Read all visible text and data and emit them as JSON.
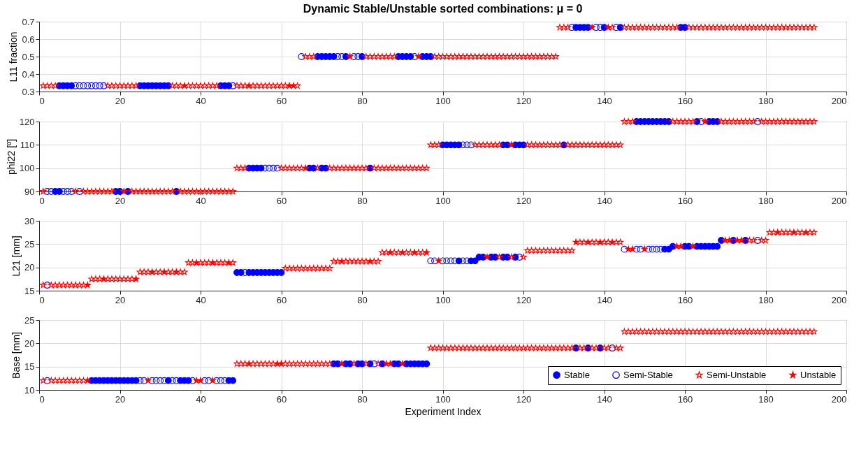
{
  "chart_data": [
    {
      "type": "scatter",
      "title": "Dynamic Stable/Unstable sorted combinations: μ = 0",
      "ylabel": "L11 fraction",
      "xlim": [
        0,
        200
      ],
      "xticks": [
        0,
        20,
        40,
        60,
        80,
        100,
        120,
        140,
        160,
        180,
        200
      ],
      "ylim": [
        0.3,
        0.7
      ],
      "yticks": [
        0.3,
        0.4,
        0.5,
        0.6,
        0.7
      ],
      "grid": true,
      "series": [
        {
          "color": "#0000ff",
          "marker": "circle",
          "x": [
            5,
            6,
            7,
            8,
            25,
            26,
            27,
            28,
            29,
            30,
            31,
            32,
            45,
            46,
            47,
            69,
            70,
            71,
            72,
            73,
            76,
            80,
            89,
            90,
            91,
            92,
            95,
            96,
            97,
            133,
            134,
            135,
            136,
            140,
            144,
            159,
            160
          ],
          "values": [
            0.333,
            0.333,
            0.333,
            0.333,
            0.333,
            0.333,
            0.333,
            0.333,
            0.333,
            0.333,
            0.333,
            0.333,
            0.333,
            0.333,
            0.333,
            0.5,
            0.5,
            0.5,
            0.5,
            0.5,
            0.5,
            0.5,
            0.5,
            0.5,
            0.5,
            0.5,
            0.5,
            0.5,
            0.5,
            0.667,
            0.667,
            0.667,
            0.667,
            0.667,
            0.667,
            0.667,
            0.667
          ]
        },
        {
          "color": "#0000ff",
          "marker": "circle",
          "x": [
            9,
            10,
            11,
            12,
            13,
            14,
            15,
            16,
            48,
            65,
            74,
            75,
            78,
            79,
            93,
            132,
            138,
            139,
            143
          ],
          "values": [
            0.333,
            0.333,
            0.333,
            0.333,
            0.333,
            0.333,
            0.333,
            0.333,
            0.333,
            0.5,
            0.5,
            0.5,
            0.5,
            0.5,
            0.5,
            0.667,
            0.667,
            0.667,
            0.667
          ]
        },
        {
          "color": "#ff0000",
          "marker": "star",
          "x": [
            1,
            2,
            3,
            4,
            17,
            18,
            19,
            20,
            21,
            22,
            23,
            24,
            33,
            34,
            35,
            37,
            38,
            39,
            40,
            41,
            42,
            43,
            44,
            49,
            50,
            51,
            53,
            54,
            55,
            56,
            57,
            58,
            59,
            60,
            61,
            64,
            66,
            67,
            68,
            81,
            82,
            83,
            84,
            85,
            86,
            87,
            88,
            98,
            99,
            100,
            101,
            102,
            103,
            104,
            105,
            106,
            107,
            108,
            109,
            110,
            111,
            112,
            113,
            114,
            115,
            116,
            117,
            118,
            119,
            120,
            121,
            122,
            123,
            124,
            125,
            126,
            127,
            128,
            129,
            130,
            131,
            142,
            145,
            146,
            147,
            148,
            149,
            150,
            151,
            152,
            153,
            154,
            155,
            156,
            157,
            158,
            161,
            162,
            163,
            164,
            165,
            166,
            167,
            168,
            169,
            170,
            171,
            172,
            173,
            174,
            175,
            176,
            177,
            178,
            179,
            180,
            181,
            182,
            183,
            184,
            185,
            186,
            187,
            188,
            189,
            190,
            191,
            192
          ],
          "values": [
            0.333,
            0.333,
            0.333,
            0.333,
            0.333,
            0.333,
            0.333,
            0.333,
            0.333,
            0.333,
            0.333,
            0.333,
            0.333,
            0.333,
            0.333,
            0.333,
            0.333,
            0.333,
            0.333,
            0.333,
            0.333,
            0.333,
            0.333,
            0.333,
            0.333,
            0.333,
            0.333,
            0.333,
            0.333,
            0.333,
            0.333,
            0.333,
            0.333,
            0.333,
            0.333,
            0.333,
            0.5,
            0.5,
            0.5,
            0.5,
            0.5,
            0.5,
            0.5,
            0.5,
            0.5,
            0.5,
            0.5,
            0.5,
            0.5,
            0.5,
            0.5,
            0.5,
            0.5,
            0.5,
            0.5,
            0.5,
            0.5,
            0.5,
            0.5,
            0.5,
            0.5,
            0.5,
            0.5,
            0.5,
            0.5,
            0.5,
            0.5,
            0.5,
            0.5,
            0.5,
            0.5,
            0.5,
            0.5,
            0.5,
            0.5,
            0.5,
            0.5,
            0.5,
            0.667,
            0.667,
            0.667,
            0.667,
            0.667,
            0.667,
            0.667,
            0.667,
            0.667,
            0.667,
            0.667,
            0.667,
            0.667,
            0.667,
            0.667,
            0.667,
            0.667,
            0.667,
            0.667,
            0.667,
            0.667,
            0.667,
            0.667,
            0.667,
            0.667,
            0.667,
            0.667,
            0.667,
            0.667,
            0.667,
            0.667,
            0.667,
            0.667,
            0.667,
            0.667,
            0.667,
            0.667,
            0.667,
            0.667,
            0.667,
            0.667,
            0.667,
            0.667,
            0.667,
            0.667,
            0.667,
            0.667,
            0.667,
            0.667,
            0.667
          ]
        },
        {
          "color": "#ff0000",
          "marker": "star",
          "x": [
            36,
            52,
            62,
            63,
            77,
            94,
            137,
            141
          ],
          "values": [
            0.333,
            0.333,
            0.333,
            0.333,
            0.5,
            0.5,
            0.667,
            0.667
          ]
        }
      ]
    },
    {
      "type": "scatter",
      "ylabel": "phi22 [º]",
      "xlim": [
        0,
        200
      ],
      "xticks": [
        0,
        20,
        40,
        60,
        80,
        100,
        120,
        140,
        160,
        180,
        200
      ],
      "ylim": [
        90,
        120
      ],
      "yticks": [
        90,
        100,
        110,
        120
      ],
      "grid": true,
      "series": [
        {
          "color": "#0000ff",
          "marker": "circle",
          "x": [
            4,
            5,
            19,
            20,
            22,
            34,
            52,
            53,
            54,
            55,
            67,
            68,
            70,
            71,
            82,
            100,
            101,
            102,
            103,
            104,
            115,
            116,
            118,
            119,
            120,
            130,
            148,
            149,
            150,
            151,
            152,
            153,
            154,
            155,
            156,
            163,
            166,
            167,
            168
          ],
          "values": [
            90,
            90,
            90,
            90,
            90,
            90,
            100,
            100,
            100,
            100,
            100,
            100,
            100,
            100,
            100,
            110,
            110,
            110,
            110,
            110,
            110,
            110,
            110,
            110,
            110,
            110,
            120,
            120,
            120,
            120,
            120,
            120,
            120,
            120,
            120,
            120,
            120,
            120,
            120
          ]
        },
        {
          "color": "#0000ff",
          "marker": "circle",
          "x": [
            2,
            3,
            6,
            7,
            8,
            10,
            56,
            57,
            58,
            59,
            105,
            106,
            107,
            164,
            178
          ],
          "values": [
            90,
            90,
            90,
            90,
            90,
            90,
            100,
            100,
            100,
            100,
            110,
            110,
            110,
            120,
            120
          ]
        },
        {
          "color": "#ff0000",
          "marker": "star",
          "x": [
            1,
            9,
            11,
            12,
            13,
            14,
            15,
            16,
            17,
            18,
            23,
            24,
            25,
            26,
            27,
            28,
            29,
            30,
            31,
            32,
            33,
            35,
            36,
            37,
            38,
            39,
            40,
            41,
            42,
            43,
            44,
            45,
            46,
            47,
            48,
            49,
            50,
            51,
            60,
            61,
            62,
            63,
            64,
            65,
            69,
            72,
            73,
            74,
            75,
            76,
            77,
            78,
            79,
            80,
            81,
            83,
            84,
            85,
            86,
            87,
            88,
            89,
            90,
            91,
            92,
            93,
            94,
            95,
            96,
            97,
            98,
            99,
            108,
            109,
            110,
            111,
            112,
            113,
            114,
            121,
            122,
            123,
            124,
            125,
            126,
            127,
            128,
            129,
            131,
            132,
            133,
            134,
            135,
            136,
            137,
            138,
            139,
            140,
            141,
            142,
            143,
            144,
            145,
            146,
            147,
            157,
            158,
            159,
            160,
            161,
            162,
            169,
            170,
            171,
            172,
            173,
            174,
            175,
            176,
            177,
            179,
            180,
            181,
            182,
            183,
            184,
            185,
            186,
            187,
            188,
            189,
            190,
            191,
            192
          ],
          "values": [
            90,
            90,
            90,
            90,
            90,
            90,
            90,
            90,
            90,
            90,
            90,
            90,
            90,
            90,
            90,
            90,
            90,
            90,
            90,
            90,
            90,
            90,
            90,
            90,
            90,
            90,
            90,
            90,
            90,
            90,
            90,
            90,
            90,
            90,
            90,
            100,
            100,
            100,
            100,
            100,
            100,
            100,
            100,
            100,
            100,
            100,
            100,
            100,
            100,
            100,
            100,
            100,
            100,
            100,
            100,
            100,
            100,
            100,
            100,
            100,
            100,
            100,
            100,
            100,
            100,
            100,
            100,
            100,
            100,
            110,
            110,
            110,
            110,
            110,
            110,
            110,
            110,
            110,
            110,
            110,
            110,
            110,
            110,
            110,
            110,
            110,
            110,
            110,
            110,
            110,
            110,
            110,
            110,
            110,
            110,
            110,
            110,
            110,
            110,
            110,
            110,
            110,
            120,
            120,
            120,
            120,
            120,
            120,
            120,
            120,
            120,
            120,
            120,
            120,
            120,
            120,
            120,
            120,
            120,
            120,
            120,
            120,
            120,
            120,
            120,
            120,
            120,
            120,
            120,
            120,
            120,
            120,
            120,
            120
          ]
        },
        {
          "color": "#ff0000",
          "marker": "star",
          "x": [
            21,
            66,
            117,
            165
          ],
          "values": [
            90,
            100,
            110,
            120
          ]
        }
      ]
    },
    {
      "type": "scatter",
      "ylabel": "L21 [mm]",
      "xlim": [
        0,
        200
      ],
      "xticks": [
        0,
        20,
        40,
        60,
        80,
        100,
        120,
        140,
        160,
        180,
        200
      ],
      "ylim": [
        15,
        30
      ],
      "yticks": [
        15,
        20,
        25,
        30
      ],
      "grid": true,
      "series": [
        {
          "color": "#0000ff",
          "marker": "circle",
          "x": [
            49,
            50,
            52,
            53,
            54,
            55,
            56,
            57,
            58,
            59,
            60,
            104,
            107,
            108,
            109,
            110,
            112,
            113,
            115,
            116,
            118,
            155,
            156,
            157,
            160,
            161,
            163,
            164,
            165,
            166,
            167,
            168,
            169,
            172,
            175
          ],
          "values": [
            18.9,
            18.9,
            18.9,
            18.9,
            18.9,
            18.9,
            18.9,
            18.9,
            18.9,
            18.9,
            18.9,
            21.4,
            21.4,
            21.4,
            22.2,
            22.2,
            22.2,
            22.2,
            22.2,
            22.2,
            22.2,
            23.9,
            23.9,
            24.5,
            24.5,
            24.5,
            24.5,
            24.5,
            24.5,
            24.5,
            24.5,
            24.5,
            25.8,
            25.8,
            25.8
          ]
        },
        {
          "color": "#0000ff",
          "marker": "circle",
          "x": [
            2,
            51,
            97,
            98,
            100,
            101,
            102,
            103,
            105,
            106,
            119,
            145,
            148,
            149,
            151,
            152,
            153,
            154,
            178
          ],
          "values": [
            16.2,
            18.9,
            21.4,
            21.4,
            21.4,
            21.4,
            21.4,
            21.4,
            21.4,
            21.4,
            22.2,
            23.9,
            23.9,
            23.9,
            23.9,
            23.9,
            23.9,
            23.9,
            25.8
          ]
        },
        {
          "color": "#ff0000",
          "marker": "star",
          "x": [
            1,
            3,
            4,
            5,
            6,
            7,
            8,
            9,
            10,
            11,
            13,
            14,
            15,
            17,
            18,
            19,
            20,
            21,
            22,
            23,
            25,
            26,
            27,
            29,
            30,
            32,
            33,
            35,
            36,
            37,
            38,
            40,
            41,
            42,
            44,
            45,
            46,
            48,
            61,
            62,
            63,
            64,
            65,
            66,
            67,
            68,
            69,
            70,
            71,
            72,
            73,
            74,
            76,
            77,
            78,
            79,
            80,
            81,
            83,
            84,
            85,
            86,
            88,
            89,
            91,
            92,
            94,
            95,
            114,
            117,
            120,
            121,
            122,
            123,
            124,
            125,
            126,
            127,
            128,
            129,
            130,
            131,
            132,
            134,
            135,
            137,
            138,
            140,
            141,
            143,
            144,
            176,
            177,
            179,
            180,
            181,
            182,
            184,
            185,
            186,
            188,
            189,
            191,
            192
          ],
          "values": [
            16.2,
            16.2,
            16.2,
            16.2,
            16.2,
            16.2,
            16.2,
            16.2,
            16.2,
            16.2,
            17.5,
            17.5,
            17.5,
            17.5,
            17.5,
            17.5,
            17.5,
            17.5,
            17.5,
            17.5,
            19.0,
            19.0,
            19.0,
            19.0,
            19.0,
            19.0,
            19.0,
            19.0,
            19.0,
            21.0,
            21.0,
            21.0,
            21.0,
            21.0,
            21.0,
            21.0,
            21.0,
            21.0,
            19.8,
            19.8,
            19.8,
            19.8,
            19.8,
            19.8,
            19.8,
            19.8,
            19.8,
            19.8,
            19.8,
            19.8,
            21.3,
            21.3,
            21.3,
            21.3,
            21.3,
            21.3,
            21.3,
            21.3,
            21.3,
            21.3,
            23.2,
            23.2,
            23.2,
            23.2,
            23.2,
            23.2,
            23.2,
            23.2,
            22.2,
            22.2,
            22.2,
            23.6,
            23.6,
            23.6,
            23.6,
            23.6,
            23.6,
            23.6,
            23.6,
            23.6,
            23.6,
            23.6,
            23.6,
            25.4,
            25.4,
            25.4,
            25.4,
            25.4,
            25.4,
            25.4,
            25.4,
            25.8,
            25.8,
            25.8,
            25.8,
            27.5,
            27.5,
            27.5,
            27.5,
            27.5,
            27.5,
            27.5,
            27.5,
            27.5
          ]
        },
        {
          "color": "#ff0000",
          "marker": "star",
          "x": [
            12,
            16,
            24,
            28,
            31,
            34,
            39,
            43,
            47,
            75,
            82,
            87,
            90,
            93,
            96,
            99,
            111,
            133,
            136,
            139,
            142,
            146,
            147,
            150,
            158,
            159,
            162,
            170,
            171,
            173,
            174,
            183,
            187,
            190
          ],
          "values": [
            16.2,
            17.5,
            17.5,
            19.0,
            19.0,
            19.0,
            21.0,
            21.0,
            21.0,
            21.3,
            21.3,
            23.2,
            23.2,
            23.2,
            23.2,
            21.4,
            22.2,
            25.4,
            25.4,
            25.4,
            25.4,
            23.9,
            23.9,
            23.9,
            24.5,
            24.5,
            24.5,
            25.8,
            25.8,
            25.8,
            25.8,
            27.5,
            27.5,
            27.5
          ]
        }
      ]
    },
    {
      "type": "scatter",
      "ylabel": "Base [mm]",
      "xlabel": "Experiment Index",
      "xlim": [
        0,
        200
      ],
      "xticks": [
        0,
        20,
        40,
        60,
        80,
        100,
        120,
        140,
        160,
        180,
        200
      ],
      "ylim": [
        10,
        25
      ],
      "yticks": [
        10,
        15,
        20,
        25
      ],
      "grid": true,
      "legend": "bottom right",
      "series": [
        {
          "name": "Stable",
          "color": "#0000ff",
          "marker": "circle",
          "x": [
            13,
            14,
            15,
            16,
            17,
            18,
            19,
            20,
            21,
            22,
            23,
            24,
            32,
            35,
            36,
            37,
            47,
            48,
            73,
            74,
            76,
            77,
            79,
            80,
            82,
            85,
            88,
            89,
            91,
            92,
            93,
            94,
            95,
            96,
            133,
            136,
            139
          ],
          "values": [
            12.0,
            12.0,
            12.0,
            12.0,
            12.0,
            12.0,
            12.0,
            12.0,
            12.0,
            12.0,
            12.0,
            12.0,
            12.0,
            12.0,
            12.0,
            12.0,
            12.0,
            12.0,
            15.6,
            15.6,
            15.6,
            15.6,
            15.6,
            15.6,
            15.6,
            15.6,
            15.6,
            15.6,
            15.6,
            15.6,
            15.6,
            15.6,
            15.6,
            15.6,
            19.0,
            19.0,
            19.0
          ]
        },
        {
          "name": "Semi-Stable",
          "color": "#0000ff",
          "marker": "circle",
          "x": [
            2,
            25,
            26,
            28,
            29,
            30,
            31,
            33,
            34,
            38,
            41,
            42,
            44,
            45,
            46,
            83,
            142
          ],
          "values": [
            12.0,
            12.0,
            12.0,
            12.0,
            12.0,
            12.0,
            12.0,
            12.0,
            12.0,
            12.0,
            12.0,
            12.0,
            12.0,
            12.0,
            12.0,
            15.6,
            19.0
          ]
        },
        {
          "name": "Semi-Unstable",
          "color": "#ff0000",
          "marker": "star",
          "x": [
            1,
            3,
            4,
            5,
            6,
            7,
            8,
            9,
            10,
            11,
            49,
            50,
            51,
            53,
            54,
            55,
            56,
            57,
            58,
            61,
            62,
            63,
            64,
            65,
            66,
            67,
            68,
            69,
            70,
            71,
            72,
            78,
            81,
            84,
            97,
            98,
            99,
            100,
            101,
            102,
            103,
            104,
            105,
            106,
            107,
            108,
            109,
            110,
            111,
            112,
            113,
            114,
            115,
            116,
            117,
            118,
            119,
            120,
            121,
            122,
            123,
            124,
            125,
            126,
            127,
            128,
            129,
            130,
            131,
            132,
            134,
            135,
            137,
            138,
            140,
            141,
            143,
            144,
            145,
            146,
            147,
            148,
            149,
            150,
            151,
            152,
            153,
            154,
            155,
            156,
            157,
            158,
            159,
            160,
            161,
            162,
            163,
            164,
            165,
            166,
            167,
            168,
            169,
            170,
            171,
            172,
            173,
            174,
            175,
            176,
            177,
            178,
            179,
            180,
            181,
            182,
            183,
            184,
            185,
            186,
            187,
            188,
            189,
            190,
            191,
            192
          ],
          "values": [
            12.0,
            12.0,
            12.0,
            12.0,
            12.0,
            12.0,
            12.0,
            12.0,
            12.0,
            12.0,
            15.6,
            15.6,
            15.6,
            15.6,
            15.6,
            15.6,
            15.6,
            15.6,
            15.6,
            15.6,
            15.6,
            15.6,
            15.6,
            15.6,
            15.6,
            15.6,
            15.6,
            15.6,
            15.6,
            15.6,
            15.6,
            15.6,
            15.6,
            15.6,
            19.0,
            19.0,
            19.0,
            19.0,
            19.0,
            19.0,
            19.0,
            19.0,
            19.0,
            19.0,
            19.0,
            19.0,
            19.0,
            19.0,
            19.0,
            19.0,
            19.0,
            19.0,
            19.0,
            19.0,
            19.0,
            19.0,
            19.0,
            19.0,
            19.0,
            19.0,
            19.0,
            19.0,
            19.0,
            19.0,
            19.0,
            19.0,
            19.0,
            19.0,
            19.0,
            19.0,
            19.0,
            19.0,
            19.0,
            19.0,
            19.0,
            19.0,
            19.0,
            19.0,
            22.5,
            22.5,
            22.5,
            22.5,
            22.5,
            22.5,
            22.5,
            22.5,
            22.5,
            22.5,
            22.5,
            22.5,
            22.5,
            22.5,
            22.5,
            22.5,
            22.5,
            22.5,
            22.5,
            22.5,
            22.5,
            22.5,
            22.5,
            22.5,
            22.5,
            22.5,
            22.5,
            22.5,
            22.5,
            22.5,
            22.5,
            22.5,
            22.5,
            22.5,
            22.5,
            22.5,
            22.5,
            22.5,
            22.5,
            22.5,
            22.5,
            22.5,
            22.5,
            22.5,
            22.5,
            22.5,
            22.5,
            22.5
          ]
        },
        {
          "name": "Unstable",
          "color": "#ff0000",
          "marker": "star",
          "x": [
            12,
            27,
            39,
            40,
            43,
            52,
            59,
            60,
            75,
            86,
            87,
            90
          ],
          "values": [
            12.0,
            12.0,
            12.0,
            12.0,
            12.0,
            15.6,
            15.6,
            15.6,
            15.6,
            15.6,
            15.6,
            15.6
          ]
        }
      ]
    }
  ]
}
